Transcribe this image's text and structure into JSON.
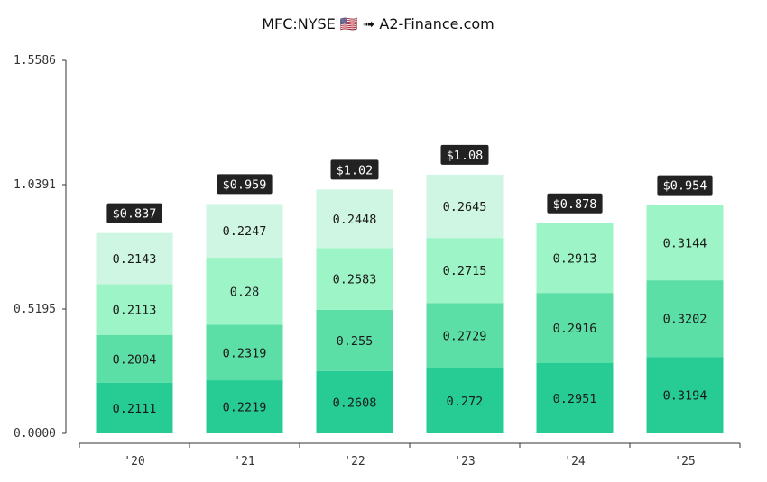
{
  "chart_data": {
    "type": "bar",
    "stacked": true,
    "title": "MFC:NYSE 🇺🇸 ➟ A2-Finance.com",
    "xlabel": "",
    "ylabel": "",
    "ylim": [
      0,
      1.5586
    ],
    "yticks": [
      "0.0000",
      "0.5195",
      "1.0391",
      "1.5586"
    ],
    "ytick_values": [
      0,
      0.5195,
      1.0391,
      1.5586
    ],
    "categories": [
      "'20",
      "'21",
      "'22",
      "'23",
      "'24",
      "'25"
    ],
    "segments": [
      [
        0.2111,
        0.2004,
        0.2113,
        0.2143
      ],
      [
        0.2219,
        0.2319,
        0.28,
        0.2247
      ],
      [
        0.2608,
        0.255,
        0.2583,
        0.2448
      ],
      [
        0.272,
        0.2729,
        0.2715,
        0.2645
      ],
      [
        0.2951,
        0.2916,
        0.2913
      ],
      [
        0.3194,
        0.3202,
        0.3144
      ]
    ],
    "segment_labels": [
      [
        "0.2111",
        "0.2004",
        "0.2113",
        "0.2143"
      ],
      [
        "0.2219",
        "0.2319",
        "0.28",
        "0.2247"
      ],
      [
        "0.2608",
        "0.255",
        "0.2583",
        "0.2448"
      ],
      [
        "0.272",
        "0.2729",
        "0.2715",
        "0.2645"
      ],
      [
        "0.2951",
        "0.2916",
        "0.2913"
      ],
      [
        "0.3194",
        "0.3202",
        "0.3144"
      ]
    ],
    "totals": [
      "$0.837",
      "$0.959",
      "$1.02",
      "$1.08",
      "$0.878",
      "$0.954"
    ],
    "colors": [
      "#26cc94",
      "#5cdfa6",
      "#9df4c6",
      "#cef6e2"
    ],
    "grid": false,
    "legend": "none"
  }
}
